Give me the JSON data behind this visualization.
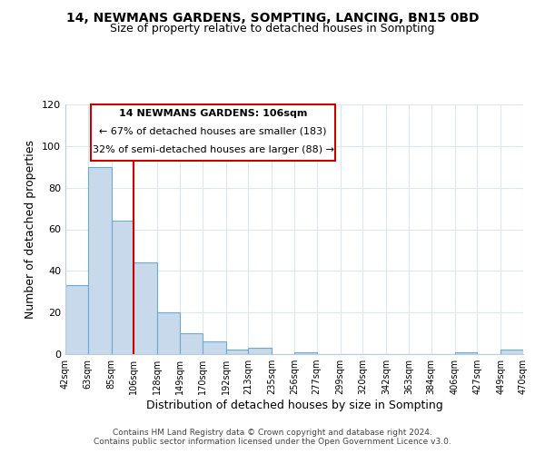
{
  "title": "14, NEWMANS GARDENS, SOMPTING, LANCING, BN15 0BD",
  "subtitle": "Size of property relative to detached houses in Sompting",
  "xlabel": "Distribution of detached houses by size in Sompting",
  "ylabel": "Number of detached properties",
  "bar_color": "#c8d9eb",
  "bar_edge_color": "#6aaad4",
  "vline_x": 106,
  "vline_color": "#cc0000",
  "annotation_title": "14 NEWMANS GARDENS: 106sqm",
  "annotation_line1": "← 67% of detached houses are smaller (183)",
  "annotation_line2": "32% of semi-detached houses are larger (88) →",
  "annotation_box_edge": "#cc0000",
  "bin_edges": [
    42,
    63,
    85,
    106,
    128,
    149,
    170,
    192,
    213,
    235,
    256,
    277,
    299,
    320,
    342,
    363,
    384,
    406,
    427,
    449,
    470
  ],
  "bar_heights": [
    33,
    90,
    64,
    44,
    20,
    10,
    6,
    2,
    3,
    0,
    1,
    0,
    0,
    0,
    0,
    0,
    0,
    1,
    0,
    2
  ],
  "xlim": [
    42,
    470
  ],
  "ylim": [
    0,
    120
  ],
  "yticks": [
    0,
    20,
    40,
    60,
    80,
    100,
    120
  ],
  "xtick_labels": [
    "42sqm",
    "63sqm",
    "85sqm",
    "106sqm",
    "128sqm",
    "149sqm",
    "170sqm",
    "192sqm",
    "213sqm",
    "235sqm",
    "256sqm",
    "277sqm",
    "299sqm",
    "320sqm",
    "342sqm",
    "363sqm",
    "384sqm",
    "406sqm",
    "427sqm",
    "449sqm",
    "470sqm"
  ],
  "footer_line1": "Contains HM Land Registry data © Crown copyright and database right 2024.",
  "footer_line2": "Contains public sector information licensed under the Open Government Licence v3.0.",
  "background_color": "#ffffff",
  "grid_color": "#dce8f0"
}
